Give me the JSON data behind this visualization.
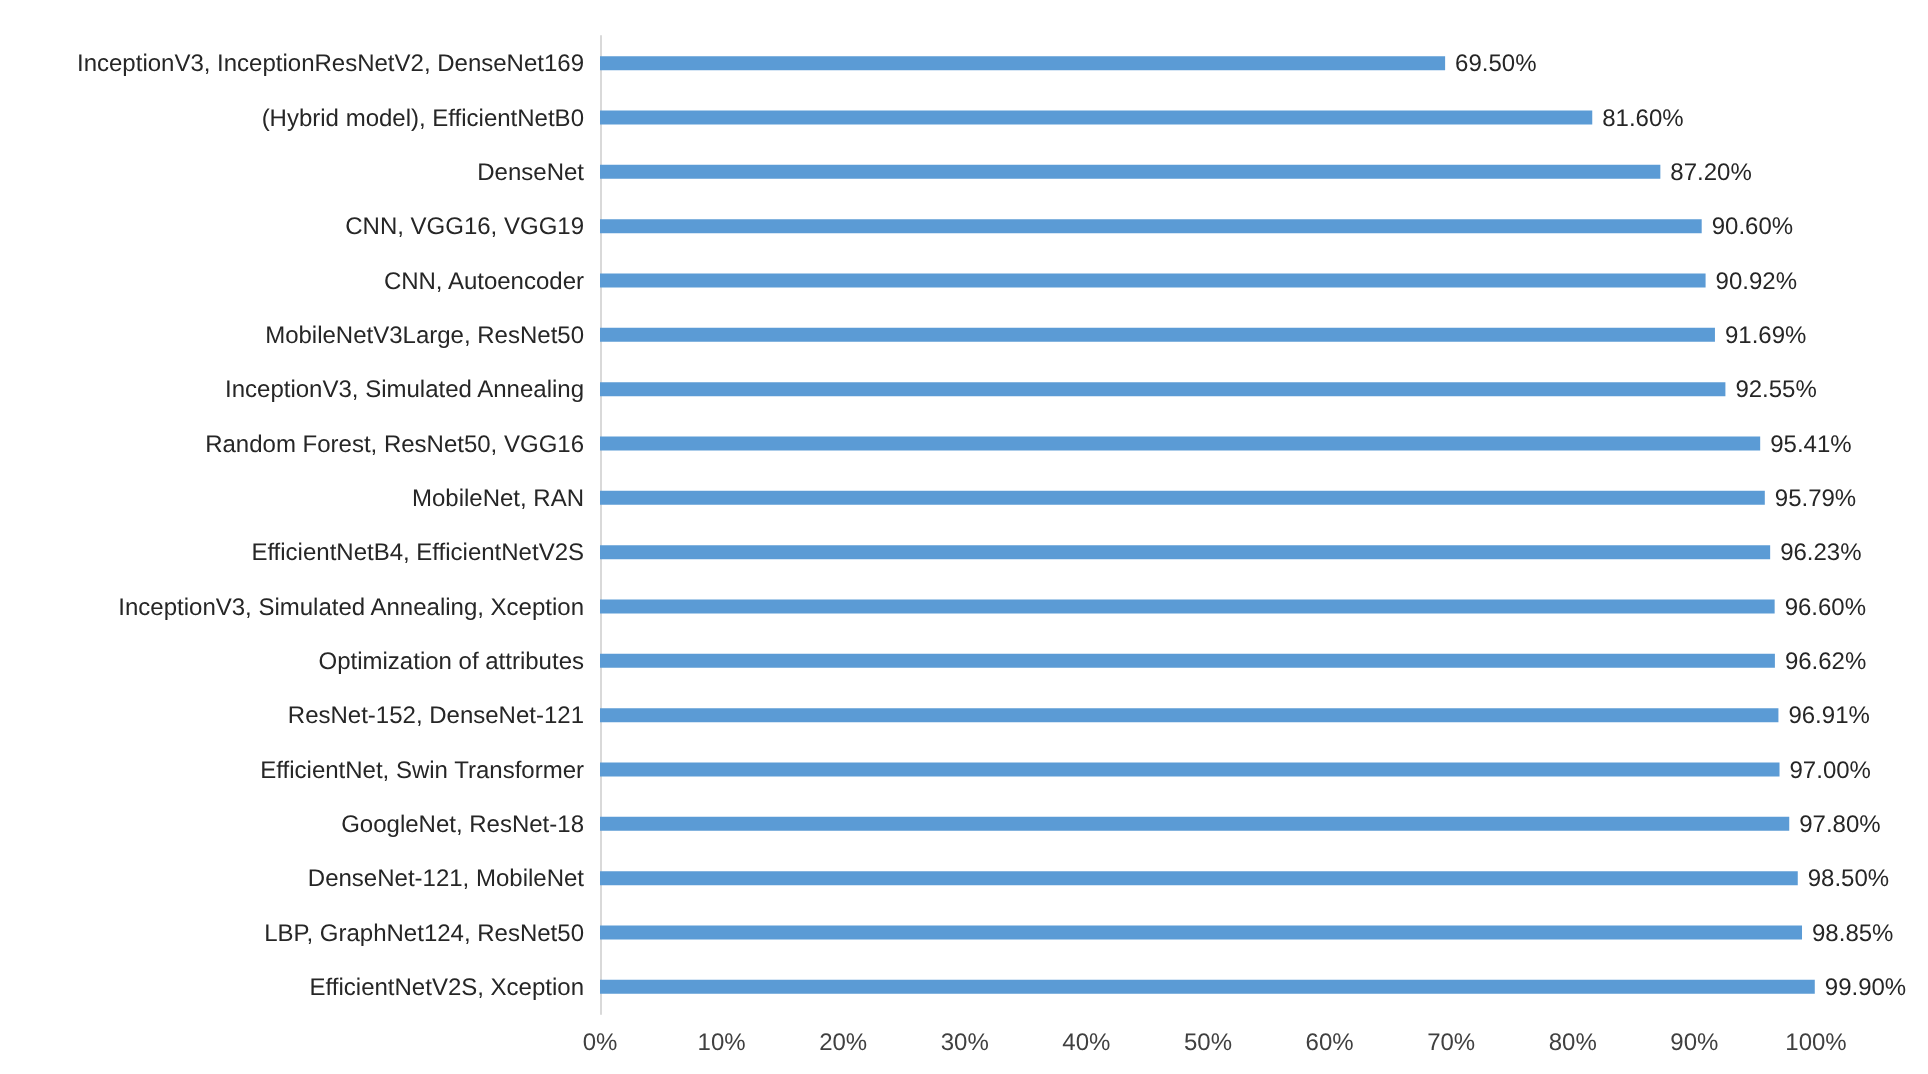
{
  "chart_data": {
    "type": "bar",
    "orientation": "horizontal",
    "categories": [
      "InceptionV3, InceptionResNetV2, DenseNet169",
      "(Hybrid model), EfficientNetB0",
      "DenseNet",
      "CNN, VGG16, VGG19",
      "CNN, Autoencoder",
      "MobileNetV3Large, ResNet50",
      "InceptionV3, Simulated Annealing",
      "Random Forest, ResNet50, VGG16",
      "MobileNet, RAN",
      "EfficientNetB4, EfficientNetV2S",
      "InceptionV3, Simulated Annealing, Xception",
      "Optimization of attributes",
      "ResNet-152, DenseNet-121",
      "EfficientNet, Swin Transformer",
      "GoogleNet, ResNet-18",
      "DenseNet-121, MobileNet",
      "LBP, GraphNet124, ResNet50",
      "EfficientNetV2S, Xception"
    ],
    "values": [
      69.5,
      81.6,
      87.2,
      90.6,
      90.92,
      91.69,
      92.55,
      95.41,
      95.79,
      96.23,
      96.6,
      96.62,
      96.91,
      97.0,
      97.8,
      98.5,
      98.85,
      99.9
    ],
    "value_labels": [
      "69.50%",
      "81.60%",
      "87.20%",
      "90.60%",
      "90.92%",
      "91.69%",
      "92.55%",
      "95.41%",
      "95.79%",
      "96.23%",
      "96.60%",
      "96.62%",
      "96.91%",
      "97.00%",
      "97.80%",
      "98.50%",
      "98.85%",
      "99.90%"
    ],
    "color": "#5b9bd5",
    "xlim": [
      0,
      100
    ],
    "xticks": [
      {
        "value": 0,
        "label": "0%"
      },
      {
        "value": 10,
        "label": "10%"
      },
      {
        "value": 20,
        "label": "20%"
      },
      {
        "value": 30,
        "label": "30%"
      },
      {
        "value": 40,
        "label": "40%"
      },
      {
        "value": 50,
        "label": "50%"
      },
      {
        "value": 60,
        "label": "60%"
      },
      {
        "value": 70,
        "label": "70%"
      },
      {
        "value": 80,
        "label": "80%"
      },
      {
        "value": 90,
        "label": "90%"
      },
      {
        "value": 100,
        "label": "100%"
      }
    ],
    "grid": false
  }
}
